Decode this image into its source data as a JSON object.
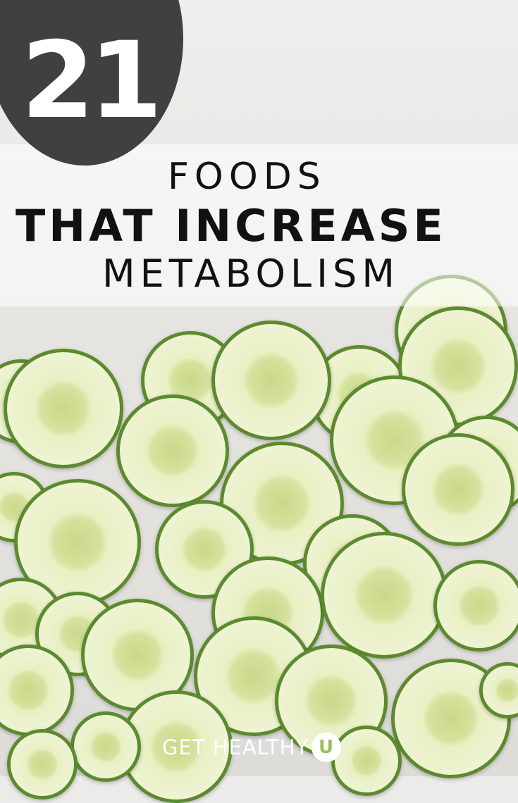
{
  "title": {
    "number": "21",
    "line1": "FOODS",
    "line2": "THAT INCREASE",
    "line3": "METABOLISM"
  },
  "logo": {
    "text": "GET HEALTHY",
    "mark": "U"
  },
  "colors": {
    "circle": "#404040",
    "cucumber_rind": "#5c8a2e",
    "text": "#111111"
  }
}
